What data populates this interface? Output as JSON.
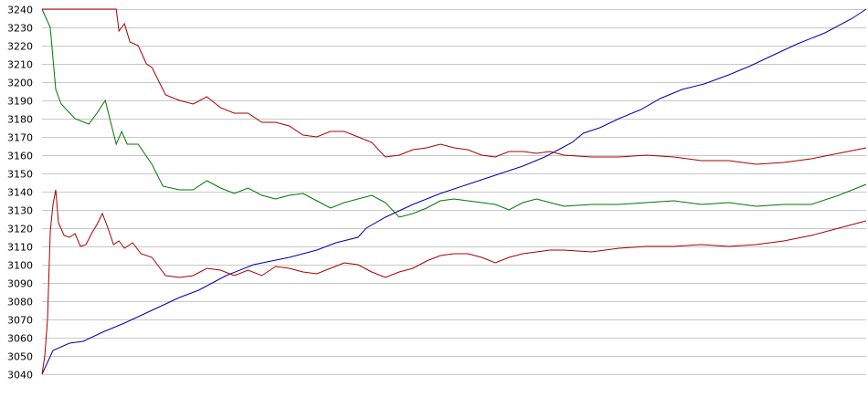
{
  "chart_data": {
    "type": "line",
    "title": "",
    "xlabel": "",
    "ylabel": "",
    "ylim": [
      3040,
      3240
    ],
    "xlim": [
      0,
      300
    ],
    "grid": true,
    "y_ticks": [
      3040,
      3050,
      3060,
      3070,
      3080,
      3090,
      3100,
      3110,
      3120,
      3130,
      3140,
      3150,
      3160,
      3170,
      3180,
      3190,
      3200,
      3210,
      3220,
      3230,
      3240
    ],
    "series": [
      {
        "color": "#0000aa",
        "points": [
          [
            0,
            3040
          ],
          [
            4,
            3053
          ],
          [
            10,
            3057
          ],
          [
            15,
            3058
          ],
          [
            22,
            3063
          ],
          [
            30,
            3068
          ],
          [
            40,
            3075
          ],
          [
            50,
            3082
          ],
          [
            57,
            3086
          ],
          [
            67,
            3094
          ],
          [
            77,
            3100
          ],
          [
            90,
            3104
          ],
          [
            100,
            3108
          ],
          [
            107,
            3112
          ],
          [
            115,
            3115
          ],
          [
            118,
            3120
          ],
          [
            125,
            3126
          ],
          [
            135,
            3133
          ],
          [
            145,
            3139
          ],
          [
            155,
            3144
          ],
          [
            165,
            3149
          ],
          [
            175,
            3154
          ],
          [
            183,
            3159
          ],
          [
            188,
            3163
          ],
          [
            193,
            3167
          ],
          [
            197,
            3172
          ],
          [
            203,
            3175
          ],
          [
            210,
            3180
          ],
          [
            218,
            3185
          ],
          [
            225,
            3191
          ],
          [
            233,
            3196
          ],
          [
            241,
            3199
          ],
          [
            250,
            3204
          ],
          [
            258,
            3209
          ],
          [
            265,
            3214
          ],
          [
            275,
            3221
          ],
          [
            285,
            3227
          ],
          [
            295,
            3235
          ],
          [
            300,
            3240
          ]
        ]
      },
      {
        "color": "#007700",
        "points": [
          [
            0,
            3240
          ],
          [
            3,
            3230
          ],
          [
            5,
            3196
          ],
          [
            7,
            3188
          ],
          [
            12,
            3180
          ],
          [
            17,
            3177
          ],
          [
            20,
            3183
          ],
          [
            23,
            3190
          ],
          [
            25,
            3178
          ],
          [
            27,
            3166
          ],
          [
            29,
            3173
          ],
          [
            31,
            3166
          ],
          [
            35,
            3166
          ],
          [
            40,
            3155
          ],
          [
            44,
            3143
          ],
          [
            50,
            3141
          ],
          [
            55,
            3141
          ],
          [
            60,
            3146
          ],
          [
            65,
            3142
          ],
          [
            70,
            3139
          ],
          [
            75,
            3142
          ],
          [
            80,
            3138
          ],
          [
            85,
            3136
          ],
          [
            90,
            3138
          ],
          [
            95,
            3139
          ],
          [
            100,
            3135
          ],
          [
            105,
            3131
          ],
          [
            110,
            3134
          ],
          [
            115,
            3136
          ],
          [
            120,
            3138
          ],
          [
            125,
            3134
          ],
          [
            130,
            3126
          ],
          [
            135,
            3128
          ],
          [
            140,
            3131
          ],
          [
            145,
            3135
          ],
          [
            150,
            3136
          ],
          [
            155,
            3135
          ],
          [
            160,
            3134
          ],
          [
            165,
            3133
          ],
          [
            170,
            3130
          ],
          [
            175,
            3134
          ],
          [
            180,
            3136
          ],
          [
            185,
            3134
          ],
          [
            190,
            3132
          ],
          [
            200,
            3133
          ],
          [
            210,
            3133
          ],
          [
            220,
            3134
          ],
          [
            230,
            3135
          ],
          [
            240,
            3133
          ],
          [
            250,
            3134
          ],
          [
            260,
            3132
          ],
          [
            270,
            3133
          ],
          [
            280,
            3133
          ],
          [
            290,
            3138
          ],
          [
            300,
            3144
          ]
        ]
      },
      {
        "color": "#aa0000",
        "points": [
          [
            0,
            3240
          ],
          [
            5,
            3240
          ],
          [
            10,
            3240
          ],
          [
            15,
            3240
          ],
          [
            20,
            3240
          ],
          [
            25,
            3240
          ],
          [
            27,
            3240
          ],
          [
            28,
            3228
          ],
          [
            30,
            3232
          ],
          [
            32,
            3222
          ],
          [
            35,
            3220
          ],
          [
            38,
            3210
          ],
          [
            40,
            3208
          ],
          [
            45,
            3193
          ],
          [
            50,
            3190
          ],
          [
            55,
            3188
          ],
          [
            60,
            3192
          ],
          [
            65,
            3186
          ],
          [
            70,
            3183
          ],
          [
            75,
            3183
          ],
          [
            80,
            3178
          ],
          [
            85,
            3178
          ],
          [
            90,
            3176
          ],
          [
            95,
            3171
          ],
          [
            100,
            3170
          ],
          [
            105,
            3173
          ],
          [
            110,
            3173
          ],
          [
            115,
            3170
          ],
          [
            120,
            3167
          ],
          [
            125,
            3159
          ],
          [
            130,
            3160
          ],
          [
            135,
            3163
          ],
          [
            140,
            3164
          ],
          [
            145,
            3166
          ],
          [
            150,
            3164
          ],
          [
            155,
            3163
          ],
          [
            160,
            3160
          ],
          [
            165,
            3159
          ],
          [
            170,
            3162
          ],
          [
            175,
            3162
          ],
          [
            180,
            3161
          ],
          [
            185,
            3162
          ],
          [
            190,
            3160
          ],
          [
            200,
            3159
          ],
          [
            210,
            3159
          ],
          [
            220,
            3160
          ],
          [
            230,
            3159
          ],
          [
            240,
            3157
          ],
          [
            250,
            3157
          ],
          [
            260,
            3155
          ],
          [
            270,
            3156
          ],
          [
            280,
            3158
          ],
          [
            290,
            3161
          ],
          [
            300,
            3164
          ]
        ]
      },
      {
        "color": "#aa0000",
        "points": [
          [
            0,
            3040
          ],
          [
            1,
            3050
          ],
          [
            2,
            3070
          ],
          [
            3,
            3118
          ],
          [
            4,
            3133
          ],
          [
            5,
            3141
          ],
          [
            6,
            3123
          ],
          [
            8,
            3116
          ],
          [
            10,
            3115
          ],
          [
            12,
            3117
          ],
          [
            14,
            3110
          ],
          [
            16,
            3111
          ],
          [
            18,
            3117
          ],
          [
            20,
            3122
          ],
          [
            22,
            3128
          ],
          [
            24,
            3120
          ],
          [
            26,
            3111
          ],
          [
            28,
            3113
          ],
          [
            30,
            3109
          ],
          [
            33,
            3112
          ],
          [
            36,
            3106
          ],
          [
            40,
            3104
          ],
          [
            45,
            3094
          ],
          [
            50,
            3093
          ],
          [
            55,
            3094
          ],
          [
            60,
            3098
          ],
          [
            65,
            3097
          ],
          [
            70,
            3094
          ],
          [
            75,
            3097
          ],
          [
            80,
            3094
          ],
          [
            85,
            3099
          ],
          [
            90,
            3098
          ],
          [
            95,
            3096
          ],
          [
            100,
            3095
          ],
          [
            105,
            3098
          ],
          [
            110,
            3101
          ],
          [
            115,
            3100
          ],
          [
            120,
            3096
          ],
          [
            125,
            3093
          ],
          [
            130,
            3096
          ],
          [
            135,
            3098
          ],
          [
            140,
            3102
          ],
          [
            145,
            3105
          ],
          [
            150,
            3106
          ],
          [
            155,
            3106
          ],
          [
            160,
            3104
          ],
          [
            165,
            3101
          ],
          [
            170,
            3104
          ],
          [
            175,
            3106
          ],
          [
            180,
            3107
          ],
          [
            185,
            3108
          ],
          [
            190,
            3108
          ],
          [
            200,
            3107
          ],
          [
            210,
            3109
          ],
          [
            220,
            3110
          ],
          [
            230,
            3110
          ],
          [
            240,
            3111
          ],
          [
            250,
            3110
          ],
          [
            260,
            3111
          ],
          [
            270,
            3113
          ],
          [
            280,
            3116
          ],
          [
            290,
            3120
          ],
          [
            300,
            3124
          ]
        ]
      }
    ]
  }
}
